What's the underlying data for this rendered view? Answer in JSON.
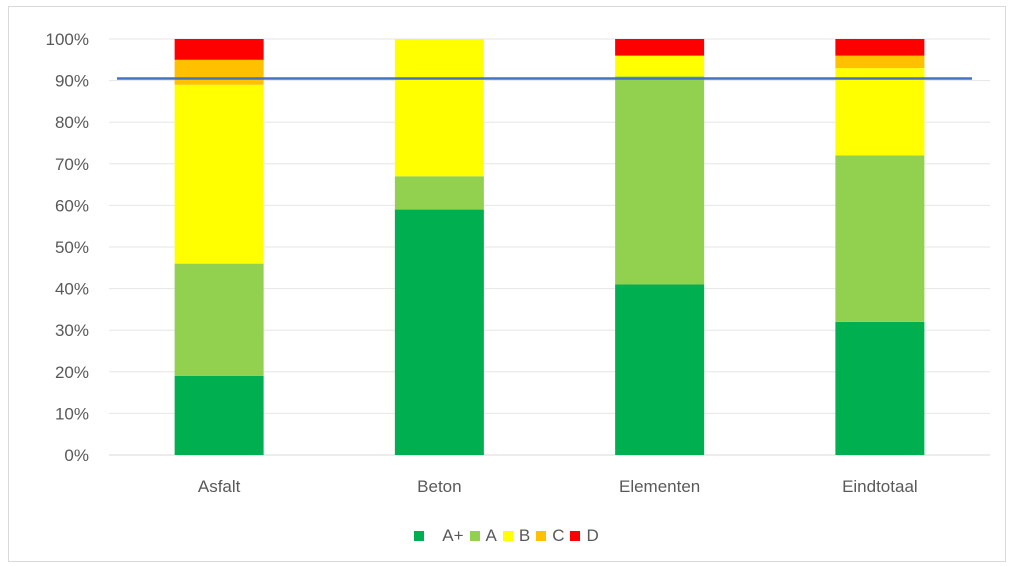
{
  "chart_data": {
    "type": "bar",
    "stacked": true,
    "categories": [
      "Asfalt",
      "Beton",
      "Elementen",
      "Eindtotaal"
    ],
    "series": [
      {
        "name": "A+",
        "color": "#00b050",
        "values": [
          19,
          59,
          41,
          32
        ]
      },
      {
        "name": "A",
        "color": "#92d050",
        "values": [
          27,
          8,
          50,
          40
        ]
      },
      {
        "name": "B",
        "color": "#ffff00",
        "values": [
          43,
          33,
          5,
          21
        ]
      },
      {
        "name": "C",
        "color": "#ffc000",
        "values": [
          6,
          0,
          0,
          3
        ]
      },
      {
        "name": "D",
        "color": "#ff0000",
        "values": [
          5,
          0,
          4,
          4
        ]
      }
    ],
    "ylim": [
      0,
      100
    ],
    "yticks": [
      "0%",
      "10%",
      "20%",
      "30%",
      "40%",
      "50%",
      "60%",
      "70%",
      "80%",
      "90%",
      "100%"
    ],
    "reference_line": {
      "value": 90.5,
      "color": "#4472c4"
    },
    "grid": true,
    "legend_position": "bottom",
    "title": "",
    "xlabel": "",
    "ylabel": ""
  }
}
